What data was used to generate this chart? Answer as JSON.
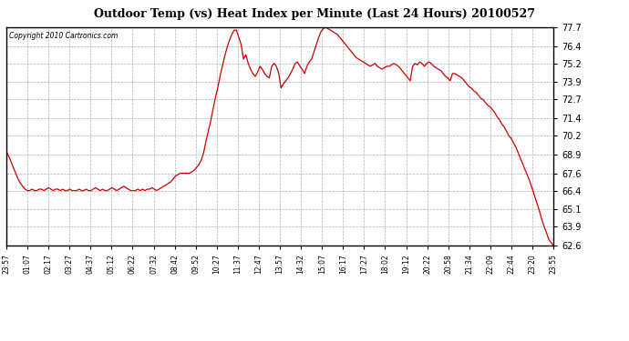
{
  "title": "Outdoor Temp (vs) Heat Index per Minute (Last 24 Hours) 20100527",
  "copyright": "Copyright 2010 Cartronics.com",
  "line_color": "#cc0000",
  "background_color": "#ffffff",
  "grid_color": "#b0b0b0",
  "ylim": [
    62.6,
    77.7
  ],
  "yticks": [
    62.6,
    63.9,
    65.1,
    66.4,
    67.6,
    68.9,
    70.2,
    71.4,
    72.7,
    73.9,
    75.2,
    76.4,
    77.7
  ],
  "xtick_labels": [
    "23:57",
    "01:07",
    "02:17",
    "03:27",
    "04:37",
    "05:12",
    "06:22",
    "07:32",
    "08:42",
    "09:52",
    "10:27",
    "11:37",
    "12:47",
    "13:57",
    "14:32",
    "15:07",
    "16:17",
    "17:27",
    "18:02",
    "19:12",
    "20:22",
    "20:58",
    "21:34",
    "22:09",
    "22:44",
    "23:20",
    "23:55"
  ],
  "curve": [
    69.1,
    68.8,
    68.4,
    68.0,
    67.6,
    67.2,
    66.9,
    66.7,
    66.5,
    66.4,
    66.4,
    66.5,
    66.4,
    66.4,
    66.5,
    66.5,
    66.4,
    66.5,
    66.6,
    66.5,
    66.4,
    66.5,
    66.5,
    66.4,
    66.5,
    66.4,
    66.4,
    66.5,
    66.4,
    66.4,
    66.4,
    66.5,
    66.4,
    66.4,
    66.5,
    66.4,
    66.4,
    66.5,
    66.6,
    66.5,
    66.4,
    66.5,
    66.4,
    66.4,
    66.5,
    66.6,
    66.5,
    66.4,
    66.5,
    66.6,
    66.7,
    66.6,
    66.5,
    66.4,
    66.4,
    66.4,
    66.5,
    66.4,
    66.5,
    66.4,
    66.5,
    66.5,
    66.6,
    66.5,
    66.4,
    66.5,
    66.6,
    66.7,
    66.8,
    66.9,
    67.0,
    67.2,
    67.4,
    67.5,
    67.6,
    67.6,
    67.6,
    67.6,
    67.6,
    67.7,
    67.8,
    68.0,
    68.2,
    68.5,
    69.0,
    69.8,
    70.5,
    71.2,
    72.0,
    72.8,
    73.5,
    74.3,
    75.0,
    75.7,
    76.3,
    76.8,
    77.2,
    77.5,
    77.5,
    77.0,
    76.5,
    75.5,
    75.8,
    75.2,
    74.8,
    74.5,
    74.3,
    74.6,
    75.0,
    74.8,
    74.5,
    74.3,
    74.2,
    75.0,
    75.2,
    75.0,
    74.5,
    73.5,
    73.8,
    74.0,
    74.2,
    74.5,
    74.8,
    75.2,
    75.3,
    75.0,
    74.8,
    74.5,
    75.0,
    75.3,
    75.5,
    76.0,
    76.5,
    77.0,
    77.4,
    77.6,
    77.7,
    77.6,
    77.5,
    77.4,
    77.3,
    77.2,
    77.0,
    76.8,
    76.6,
    76.4,
    76.2,
    76.0,
    75.8,
    75.6,
    75.5,
    75.4,
    75.3,
    75.2,
    75.1,
    75.0,
    75.1,
    75.2,
    75.0,
    74.9,
    74.8,
    74.9,
    75.0,
    75.0,
    75.1,
    75.2,
    75.1,
    75.0,
    74.8,
    74.6,
    74.4,
    74.2,
    74.0,
    75.0,
    75.2,
    75.1,
    75.3,
    75.2,
    75.0,
    75.2,
    75.3,
    75.2,
    75.0,
    74.9,
    74.8,
    74.7,
    74.5,
    74.3,
    74.2,
    74.0,
    74.5,
    74.5,
    74.4,
    74.3,
    74.2,
    74.0,
    73.8,
    73.6,
    73.5,
    73.3,
    73.2,
    73.0,
    72.8,
    72.7,
    72.5,
    72.3,
    72.2,
    72.0,
    71.8,
    71.5,
    71.3,
    71.0,
    70.8,
    70.5,
    70.2,
    70.0,
    69.7,
    69.4,
    69.0,
    68.6,
    68.2,
    67.8,
    67.4,
    67.0,
    66.5,
    66.0,
    65.5,
    65.0,
    64.4,
    63.9,
    63.5,
    63.0,
    62.8,
    62.6
  ]
}
